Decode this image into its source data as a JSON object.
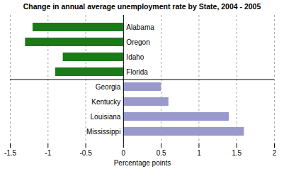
{
  "chart_data": {
    "type": "bar",
    "orientation": "horizontal",
    "title": "Change in annual average unemployment rate by State, 2004 - 2005",
    "categories": [
      "Alabama",
      "Oregon",
      "Idaho",
      "Florida",
      "Georgia",
      "Kentucky",
      "Louisiana",
      "Mississippi"
    ],
    "values": [
      -1.2,
      -1.3,
      -0.8,
      -0.9,
      0.5,
      0.6,
      1.4,
      1.6
    ],
    "colors": [
      "#1a7a1a",
      "#1a7a1a",
      "#1a7a1a",
      "#1a7a1a",
      "#9999cc",
      "#9999cc",
      "#9999cc",
      "#9999cc"
    ],
    "xlabel": "Percentage points",
    "xlim": [
      -1.5,
      2.0
    ],
    "xticks": [
      -1.5,
      -1.0,
      -0.5,
      0.0,
      0.5,
      1.0,
      1.5,
      2.0
    ],
    "grid": true
  }
}
